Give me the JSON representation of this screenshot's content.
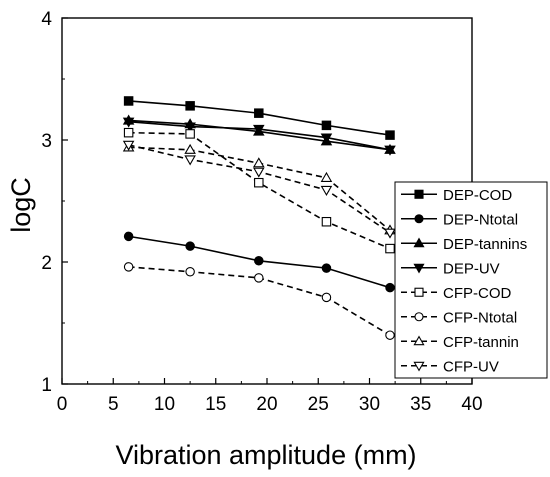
{
  "chart_data": {
    "type": "line",
    "xlabel": "Vibration amplitude (mm)",
    "ylabel": "logC",
    "xlim": [
      0,
      40
    ],
    "ylim": [
      1,
      4
    ],
    "x_ticks": [
      0,
      5,
      10,
      15,
      20,
      25,
      30,
      35,
      40
    ],
    "y_ticks": [
      1,
      2,
      3,
      4
    ],
    "x_tick_labels": [
      "0",
      "5",
      "10",
      "15",
      "20",
      "25",
      "30",
      "35",
      "40"
    ],
    "y_tick_labels": [
      "1",
      "2",
      "3",
      "4"
    ],
    "grid": false,
    "legend_position": "right",
    "series": [
      {
        "name": "DEP-COD",
        "marker": "square",
        "filled": true,
        "dash": "solid",
        "color": "#000000",
        "x": [
          6.5,
          12.5,
          19.2,
          25.8,
          32.0
        ],
        "y": [
          3.32,
          3.28,
          3.22,
          3.12,
          3.04
        ]
      },
      {
        "name": "DEP-Ntotal",
        "marker": "circle",
        "filled": true,
        "dash": "solid",
        "color": "#000000",
        "x": [
          6.5,
          12.5,
          19.2,
          25.8,
          32.0
        ],
        "y": [
          2.21,
          2.13,
          2.01,
          1.95,
          1.79
        ]
      },
      {
        "name": "DEP-tannins",
        "marker": "triangle-up",
        "filled": true,
        "dash": "solid",
        "color": "#000000",
        "x": [
          6.5,
          12.5,
          19.2,
          25.8,
          32.0
        ],
        "y": [
          3.16,
          3.13,
          3.07,
          2.99,
          2.92
        ]
      },
      {
        "name": "DEP-UV",
        "marker": "triangle-down",
        "filled": true,
        "dash": "solid",
        "color": "#000000",
        "x": [
          6.5,
          12.5,
          19.2,
          25.8,
          32.0
        ],
        "y": [
          3.15,
          3.11,
          3.09,
          3.02,
          2.92
        ]
      },
      {
        "name": "CFP-COD",
        "marker": "square",
        "filled": false,
        "dash": "dashed",
        "color": "#000000",
        "x": [
          6.5,
          12.5,
          19.2,
          25.8,
          32.0
        ],
        "y": [
          3.06,
          3.05,
          2.65,
          2.33,
          2.11
        ]
      },
      {
        "name": "CFP-Ntotal",
        "marker": "circle",
        "filled": false,
        "dash": "dashed",
        "color": "#000000",
        "x": [
          6.5,
          12.5,
          19.2,
          25.8,
          32.0
        ],
        "y": [
          1.96,
          1.92,
          1.87,
          1.71,
          1.4
        ]
      },
      {
        "name": "CFP-tannin",
        "marker": "triangle-up",
        "filled": false,
        "dash": "dashed",
        "color": "#000000",
        "x": [
          6.5,
          12.5,
          19.2,
          25.8,
          32.0
        ],
        "y": [
          2.94,
          2.92,
          2.81,
          2.69,
          2.26
        ]
      },
      {
        "name": "CFP-UV",
        "marker": "triangle-down",
        "filled": false,
        "dash": "dashed",
        "color": "#000000",
        "x": [
          6.5,
          12.5,
          19.2,
          25.8,
          32.0
        ],
        "y": [
          2.96,
          2.84,
          2.74,
          2.59,
          2.24
        ]
      }
    ]
  }
}
